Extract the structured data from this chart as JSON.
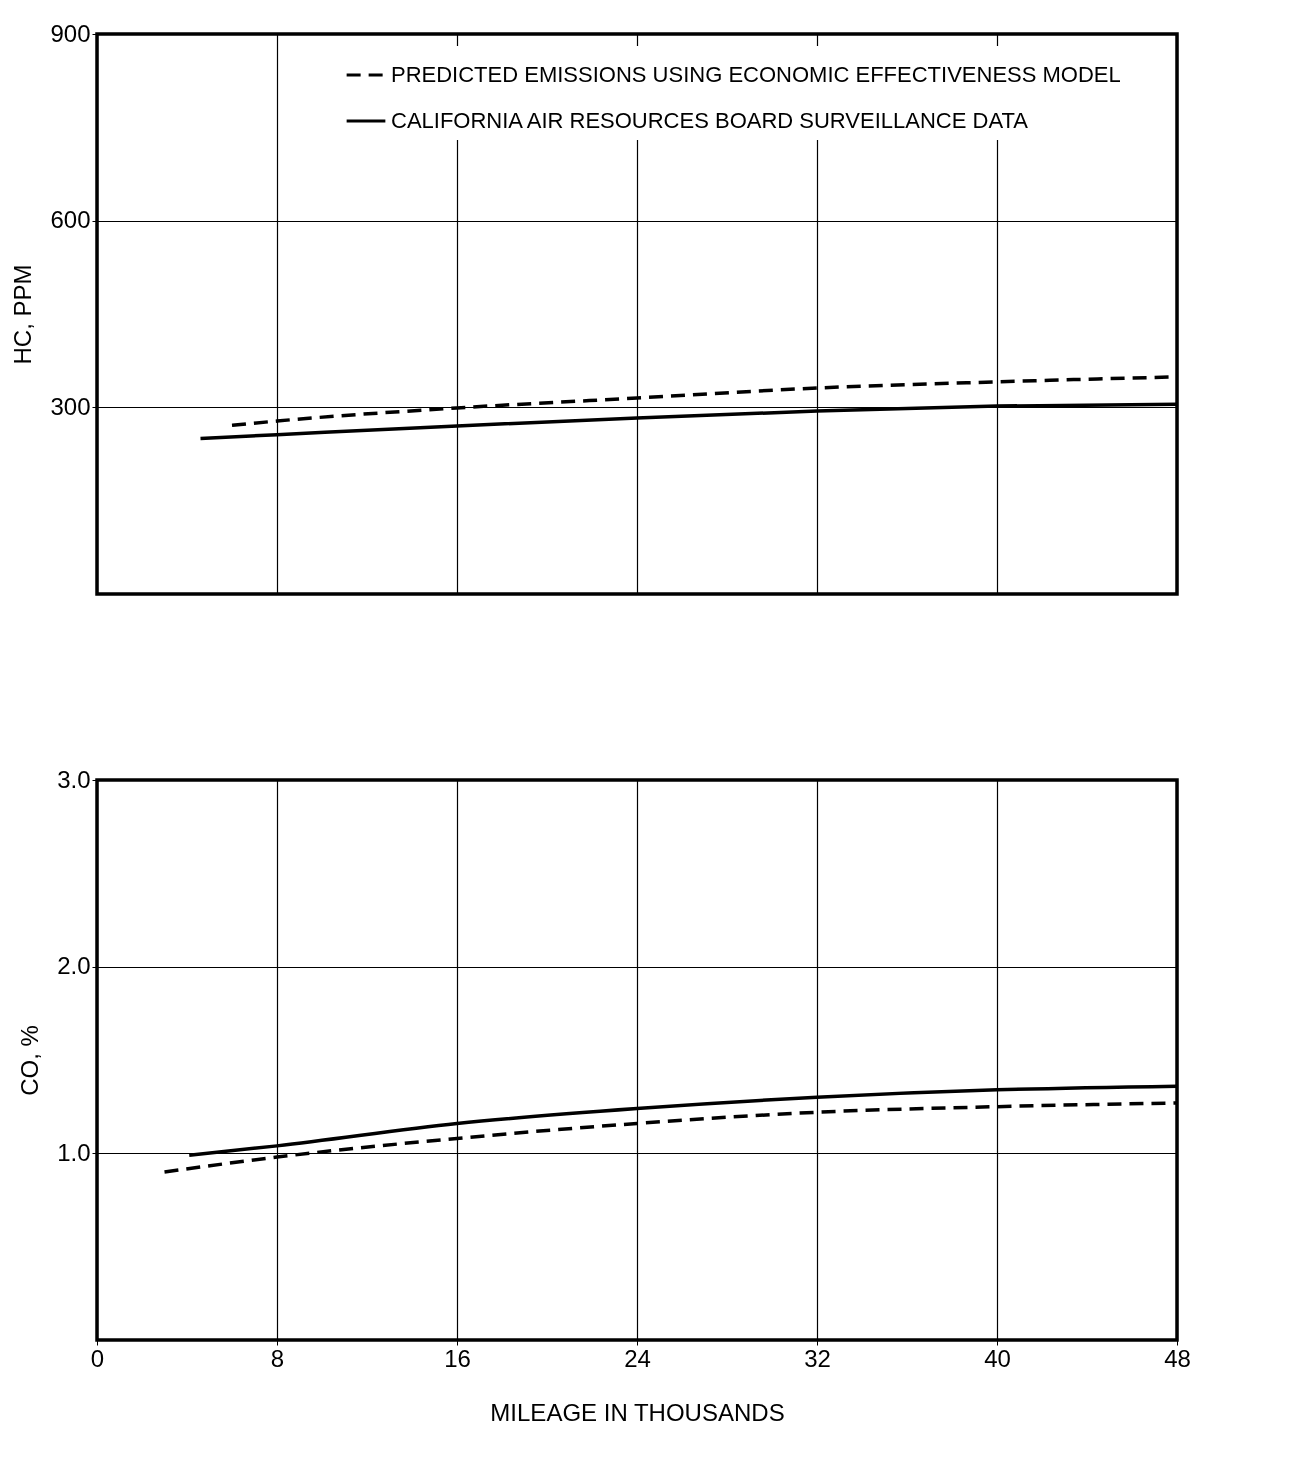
{
  "chart_data": [
    {
      "type": "line",
      "ylabel": "HC,  PPM",
      "xlim": [
        0,
        48
      ],
      "xticks": [
        0,
        8,
        16,
        24,
        32,
        40,
        48
      ],
      "ylim": [
        0,
        900
      ],
      "yticks": [
        300,
        600,
        900
      ],
      "grid": true,
      "legend": "top",
      "tick_labels": "y",
      "series": [
        {
          "name": "PREDICTED EMISSIONS USING ECONOMIC EFFECTIVENESS MODEL",
          "color": "#000000",
          "line_style": "dashed",
          "x": [
            6,
            8,
            16,
            24,
            32,
            40,
            48
          ],
          "values": [
            271,
            278,
            299,
            315,
            331,
            341,
            349
          ]
        },
        {
          "name": "CALIFORNIA AIR RESOURCES BOARD SURVEILLANCE DATA",
          "color": "#000000",
          "line_style": "solid",
          "x": [
            4.6,
            8,
            16,
            24,
            32,
            40,
            48
          ],
          "values": [
            250,
            256,
            270,
            283,
            294,
            302,
            305
          ]
        }
      ]
    },
    {
      "type": "line",
      "xlabel": "MILEAGE IN THOUSANDS",
      "ylabel": "CO, %",
      "xlim": [
        0,
        48
      ],
      "xticks": [
        0,
        8,
        16,
        24,
        32,
        40,
        48
      ],
      "ylim": [
        0,
        3
      ],
      "yticks": [
        {
          "value": 1,
          "label": "1.0"
        },
        {
          "value": 2,
          "label": "2.0"
        },
        {
          "value": 3,
          "label": "3.0"
        }
      ],
      "grid": true,
      "series": [
        {
          "color": "#000000",
          "line_style": "dashed",
          "x": [
            3,
            8,
            16,
            24,
            32,
            40,
            48
          ],
          "values": [
            0.9,
            0.98,
            1.08,
            1.16,
            1.22,
            1.25,
            1.27
          ]
        },
        {
          "color": "#000000",
          "line_style": "solid",
          "x": [
            4.1,
            8,
            16,
            24,
            32,
            40,
            48
          ],
          "values": [
            0.99,
            1.04,
            1.16,
            1.24,
            1.3,
            1.34,
            1.36
          ]
        }
      ]
    }
  ]
}
